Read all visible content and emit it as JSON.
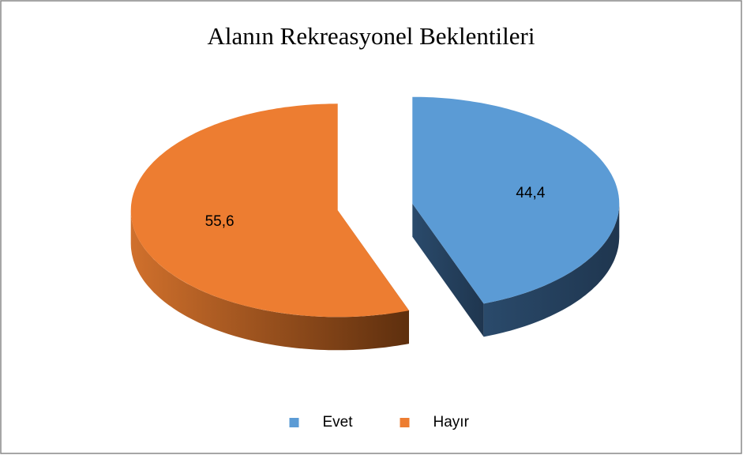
{
  "chart_data": {
    "type": "pie",
    "title": "Alanın Rekreasyonel Beklentileri",
    "categories": [
      "Evet",
      "Hayır"
    ],
    "values": [
      44.4,
      55.6
    ],
    "value_labels": [
      "44,4",
      "55,6"
    ],
    "colors": [
      "#5b9bd5",
      "#ed7d31"
    ],
    "legend": "bottom"
  }
}
